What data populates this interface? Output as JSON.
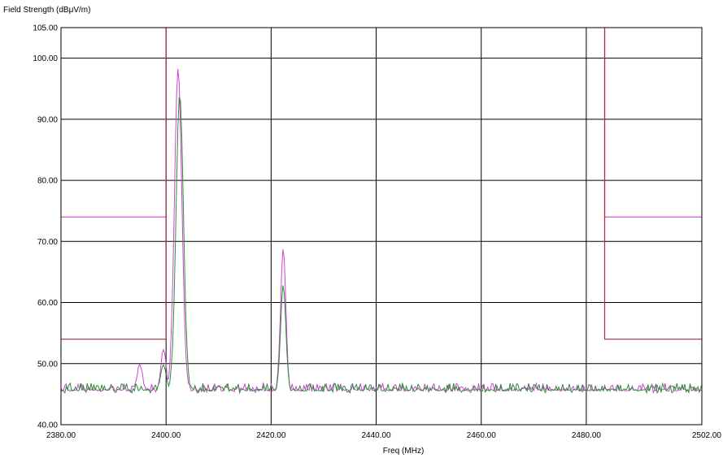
{
  "chart_data": {
    "type": "line",
    "title": "",
    "ylabel": "Field Strength (dBμV/m)",
    "xlabel": "Freq (MHz)",
    "xlim": [
      2380,
      2502
    ],
    "ylim": [
      40,
      105
    ],
    "x_ticks": [
      2380,
      2400,
      2420,
      2440,
      2460,
      2480,
      2502
    ],
    "x_tick_labels": [
      "2380.00",
      "2400.00",
      "2420.00",
      "2440.00",
      "2460.00",
      "2480.00",
      "2502.00"
    ],
    "y_ticks": [
      40,
      50,
      60,
      70,
      80,
      90,
      100,
      105
    ],
    "y_tick_labels": [
      "40.00",
      "50.00",
      "60.00",
      "70.00",
      "80.00",
      "90.00",
      "100.00",
      "105.00"
    ],
    "grid": true,
    "colors": {
      "magenta": "#cc44cc",
      "brown": "#a0303a",
      "green": "#2e8b3a",
      "grid": "#000000"
    },
    "limit_lines": [
      {
        "color": "magenta",
        "points": [
          [
            2380,
            74
          ],
          [
            2400,
            74
          ],
          [
            2400,
            105
          ]
        ]
      },
      {
        "color": "magenta",
        "points": [
          [
            2483.5,
            105
          ],
          [
            2483.5,
            74
          ],
          [
            2502,
            74
          ]
        ]
      },
      {
        "color": "brown",
        "points": [
          [
            2380,
            54
          ],
          [
            2400,
            54
          ],
          [
            2400,
            105
          ]
        ]
      },
      {
        "color": "brown",
        "points": [
          [
            2483.5,
            105
          ],
          [
            2483.5,
            54
          ],
          [
            2502,
            54
          ]
        ]
      }
    ],
    "series": [
      {
        "color": "magenta",
        "peaks": [
          [
            2395,
            50
          ],
          [
            2399.5,
            52.5
          ],
          [
            2402.3,
            98.2
          ],
          [
            2422.3,
            69
          ]
        ],
        "noise_floor": 45.5
      },
      {
        "color": "green",
        "peaks": [
          [
            2399.5,
            50
          ],
          [
            2402.6,
            94
          ],
          [
            2422.3,
            63
          ]
        ],
        "noise_floor": 45.5
      }
    ]
  }
}
